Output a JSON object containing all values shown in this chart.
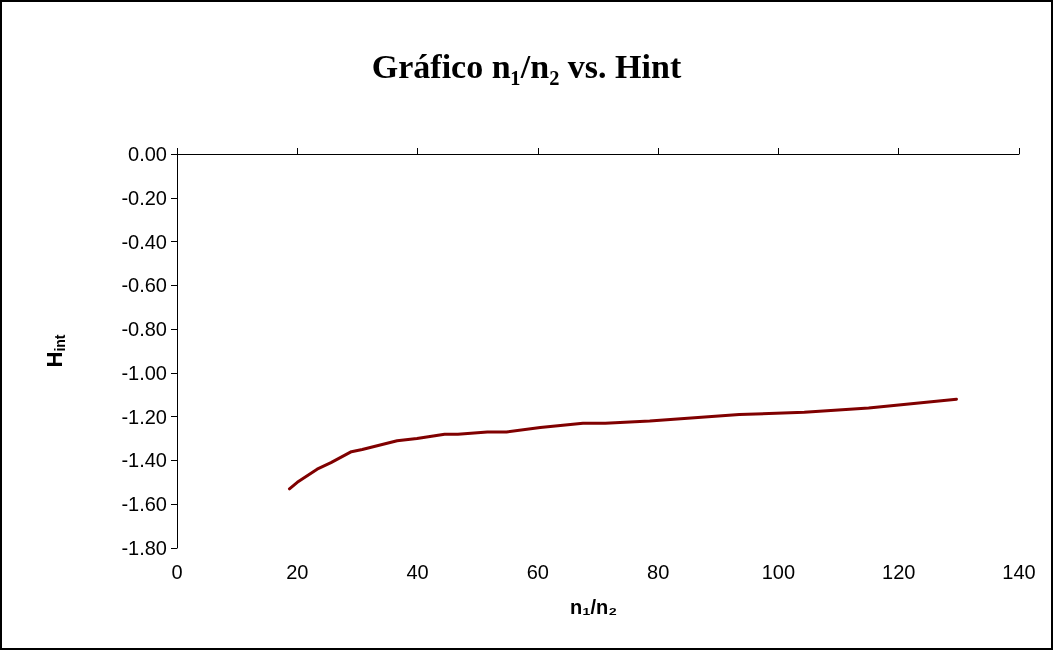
{
  "chart_data": {
    "type": "line",
    "title": "Gráfico n₁/n₂ vs. Hint",
    "xlabel": "n₁/n₂",
    "ylabel": "H$_{int}$",
    "x": [
      18.7,
      20.0,
      23.3,
      25.6,
      29.0,
      30.8,
      36.6,
      39.9,
      44.5,
      46.7,
      51.6,
      54.8,
      60.4,
      67.5,
      71.2,
      78.6,
      93.5,
      104.3,
      115.0,
      129.6
    ],
    "series": [
      {
        "color": "#800000",
        "values": [
          -1.53,
          -1.5,
          -1.44,
          -1.41,
          -1.36,
          -1.35,
          -1.31,
          -1.3,
          -1.28,
          -1.28,
          -1.27,
          -1.27,
          -1.25,
          -1.23,
          -1.23,
          -1.22,
          -1.19,
          -1.18,
          -1.16,
          -1.12
        ]
      }
    ],
    "xlim": [
      0,
      140
    ],
    "xticks": [
      0,
      20,
      40,
      60,
      80,
      100,
      120,
      140
    ],
    "ylim": [
      -1.8,
      0
    ],
    "yticks": [
      {
        "value": -1.8,
        "label": "-1.80"
      },
      {
        "value": -1.6,
        "label": "-1.60"
      },
      {
        "value": -1.4,
        "label": "-1.40"
      },
      {
        "value": -1.2,
        "label": "-1.20"
      },
      {
        "value": -1.0,
        "label": "-1.00"
      },
      {
        "value": -0.8,
        "label": "-0.80"
      },
      {
        "value": -0.6,
        "label": "-0.60"
      },
      {
        "value": -0.4,
        "label": "-0.40"
      },
      {
        "value": -0.2,
        "label": "-0.20"
      },
      {
        "value": 0,
        "label": "0.00"
      }
    ],
    "grid": false,
    "marker": "none",
    "line_style": "solid"
  }
}
